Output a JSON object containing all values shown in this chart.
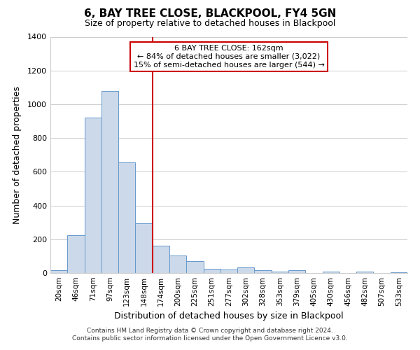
{
  "title": "6, BAY TREE CLOSE, BLACKPOOL, FY4 5GN",
  "subtitle": "Size of property relative to detached houses in Blackpool",
  "xlabel": "Distribution of detached houses by size in Blackpool",
  "ylabel": "Number of detached properties",
  "bin_labels": [
    "20sqm",
    "46sqm",
    "71sqm",
    "97sqm",
    "123sqm",
    "148sqm",
    "174sqm",
    "200sqm",
    "225sqm",
    "251sqm",
    "277sqm",
    "302sqm",
    "328sqm",
    "353sqm",
    "379sqm",
    "405sqm",
    "430sqm",
    "456sqm",
    "482sqm",
    "507sqm",
    "533sqm"
  ],
  "bar_values": [
    15,
    225,
    920,
    1080,
    655,
    295,
    160,
    105,
    70,
    25,
    20,
    35,
    15,
    10,
    15,
    0,
    10,
    0,
    10,
    0,
    5
  ],
  "bar_color": "#ccd9ea",
  "bar_edge_color": "#6699cc",
  "vline_color": "#cc0000",
  "vline_index": 5.5,
  "annotation_title": "6 BAY TREE CLOSE: 162sqm",
  "annotation_line1": "← 84% of detached houses are smaller (3,022)",
  "annotation_line2": "15% of semi-detached houses are larger (544) →",
  "annotation_box_color": "#cc0000",
  "ylim": [
    0,
    1400
  ],
  "yticks": [
    0,
    200,
    400,
    600,
    800,
    1000,
    1200,
    1400
  ],
  "footer1": "Contains HM Land Registry data © Crown copyright and database right 2024.",
  "footer2": "Contains public sector information licensed under the Open Government Licence v3.0.",
  "background_color": "#ffffff",
  "grid_color": "#cccccc"
}
